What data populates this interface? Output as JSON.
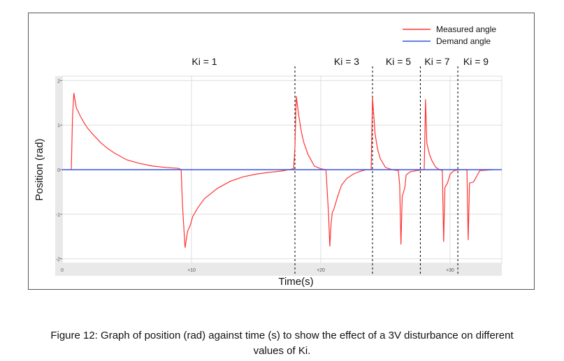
{
  "chart_data": {
    "type": "line",
    "title": "",
    "xlabel": "Time(s)",
    "ylabel": "Position (rad)",
    "xlim": [
      0,
      34
    ],
    "ylim": [
      -2.1,
      2.1
    ],
    "x_ticks": [
      0,
      10,
      20,
      30
    ],
    "x_tick_labels": [
      "0",
      "+10",
      "+20",
      "+30"
    ],
    "y_ticks": [
      -2,
      -1,
      0,
      1,
      2
    ],
    "y_tick_labels": [
      "-2",
      "-1",
      "0",
      "1",
      "2"
    ],
    "grid": true,
    "legend": {
      "position": "top-right",
      "entries": [
        "Measured angle",
        "Demand angle"
      ]
    },
    "series": [
      {
        "name": "Measured angle",
        "color": "#ff3333",
        "x": [
          0.7,
          0.8,
          0.9,
          1.0,
          1.1,
          1.2,
          1.4,
          1.6,
          1.8,
          2.0,
          2.5,
          3.0,
          3.5,
          4.0,
          5.0,
          6.0,
          7.0,
          8.0,
          9.0,
          9.2,
          9.3,
          9.5,
          9.7,
          9.9,
          10.1,
          10.5,
          11.0,
          12.0,
          13.0,
          14.0,
          15.0,
          16.0,
          17.0,
          17.5,
          17.9,
          18.0,
          18.1,
          18.3,
          18.5,
          18.7,
          19.0,
          19.5,
          20.0,
          20.4,
          20.6,
          20.7,
          20.8,
          20.9,
          21.0,
          21.3,
          21.6,
          22.0,
          22.5,
          23.0,
          23.5,
          23.9,
          24.0,
          24.1,
          24.2,
          24.4,
          24.6,
          25.0,
          25.5,
          26.0,
          26.1,
          26.2,
          26.3,
          26.5,
          26.6,
          26.9,
          27.4,
          28.0,
          28.1,
          28.2,
          28.4,
          28.6,
          28.9,
          29.2,
          29.4,
          29.5,
          29.6,
          29.8,
          30.0,
          30.3,
          30.8,
          31.3,
          31.4,
          31.5,
          31.8,
          32.3,
          33.4
        ],
        "y": [
          0.0,
          1.2,
          1.72,
          1.55,
          1.38,
          1.33,
          1.2,
          1.1,
          1.0,
          0.92,
          0.75,
          0.6,
          0.48,
          0.38,
          0.22,
          0.14,
          0.08,
          0.05,
          0.03,
          0.0,
          -0.8,
          -1.75,
          -1.38,
          -1.25,
          -1.05,
          -0.85,
          -0.65,
          -0.42,
          -0.26,
          -0.16,
          -0.1,
          -0.06,
          -0.03,
          0.0,
          0.02,
          0.5,
          1.65,
          1.2,
          0.85,
          0.6,
          0.35,
          0.08,
          0.02,
          0.0,
          -1.0,
          -1.72,
          -1.2,
          -0.95,
          -0.9,
          -0.6,
          -0.35,
          -0.2,
          -0.1,
          -0.04,
          0.0,
          0.0,
          1.62,
          1.2,
          0.8,
          0.45,
          0.25,
          0.05,
          0.0,
          -0.02,
          -0.35,
          -1.68,
          -0.6,
          -0.4,
          -0.12,
          -0.05,
          -0.02,
          0.0,
          1.58,
          0.6,
          0.35,
          0.2,
          0.05,
          0.0,
          -0.02,
          -1.62,
          -0.4,
          -0.3,
          -0.1,
          -0.02,
          0.0,
          0.0,
          -1.58,
          -0.3,
          -0.28,
          -0.02,
          0.0
        ]
      },
      {
        "name": "Demand angle",
        "color": "#3355dd",
        "x": [
          0,
          34
        ],
        "y": [
          0,
          0
        ]
      }
    ],
    "annotations": [
      {
        "text": "Ki = 1",
        "x": 11.0
      },
      {
        "text": "Ki = 3",
        "x": 22.0
      },
      {
        "text": "Ki = 5",
        "x": 26.0
      },
      {
        "text": "Ki = 7",
        "x": 29.0
      },
      {
        "text": "Ki = 9",
        "x": 32.0
      }
    ],
    "dashed_separators_x": [
      18.0,
      24.0,
      27.7,
      30.6
    ]
  },
  "caption": {
    "line1": "Figure 12: Graph of position (rad) against time (s) to show the effect of a 3V disturbance on different",
    "line2": "values of Ki."
  }
}
